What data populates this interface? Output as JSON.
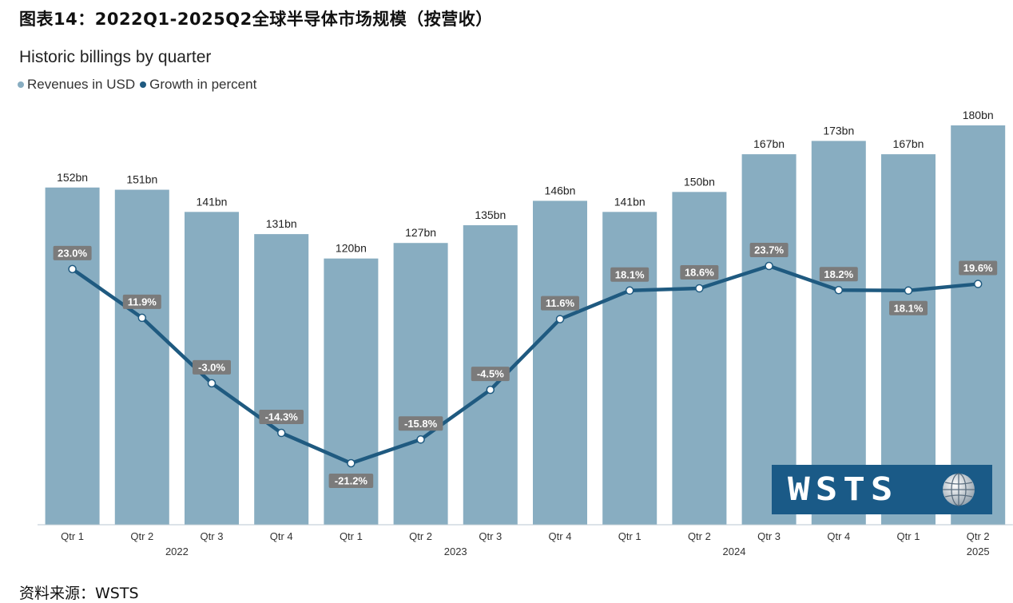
{
  "figure_title": "图表14：2022Q1-2025Q2全球半导体市场规模（按营收）",
  "source": "资料来源：WSTS",
  "logo_text": "WSTS",
  "colors": {
    "bar": "#88adc1",
    "line": "#1f5a80",
    "label_box": "#7b7b7b",
    "legend_rev": "#88adc1",
    "legend_growth": "#1f5a80"
  },
  "chart_data": {
    "type": "bar",
    "title": "Historic billings by quarter",
    "legend": [
      "Revenues in USD",
      "Growth in percent"
    ],
    "categories": [
      "Qtr 1",
      "Qtr 2",
      "Qtr 3",
      "Qtr 4",
      "Qtr 1",
      "Qtr 2",
      "Qtr 3",
      "Qtr 4",
      "Qtr 1",
      "Qtr 2",
      "Qtr 3",
      "Qtr 4",
      "Qtr 1",
      "Qtr 2"
    ],
    "years": [
      {
        "label": "2022",
        "between": [
          1,
          2
        ]
      },
      {
        "label": "2023",
        "between": [
          5,
          6
        ]
      },
      {
        "label": "2024",
        "between": [
          9,
          10
        ]
      },
      {
        "label": "2025",
        "between": [
          13,
          13
        ]
      }
    ],
    "series": [
      {
        "name": "Revenues in USD",
        "unit": "bn",
        "values": [
          152,
          151,
          141,
          131,
          120,
          127,
          135,
          146,
          141,
          150,
          167,
          173,
          167,
          180
        ]
      },
      {
        "name": "Growth in percent",
        "unit": "%",
        "values": [
          23.0,
          11.9,
          -3.0,
          -14.3,
          -21.2,
          -15.8,
          -4.5,
          11.6,
          18.1,
          18.6,
          23.7,
          18.2,
          18.1,
          19.6
        ]
      }
    ],
    "bar_labels": [
      "152bn",
      "151bn",
      "141bn",
      "131bn",
      "120bn",
      "127bn",
      "135bn",
      "146bn",
      "141bn",
      "150bn",
      "167bn",
      "173bn",
      "167bn",
      "180bn"
    ],
    "growth_labels": [
      "23.0%",
      "11.9%",
      "-3.0%",
      "-14.3%",
      "-21.2%",
      "-15.8%",
      "-4.5%",
      "11.6%",
      "18.1%",
      "18.6%",
      "23.7%",
      "18.2%",
      "18.1%",
      "19.6%"
    ],
    "growth_label_position": [
      "above",
      "above",
      "above",
      "above",
      "below",
      "above",
      "above",
      "above",
      "above",
      "above",
      "above",
      "above",
      "below",
      "above"
    ],
    "ylim_revenue": [
      0,
      180
    ],
    "ylim_growth": [
      -21.2,
      23.7
    ],
    "grid": false,
    "legend_position": "top-left"
  }
}
